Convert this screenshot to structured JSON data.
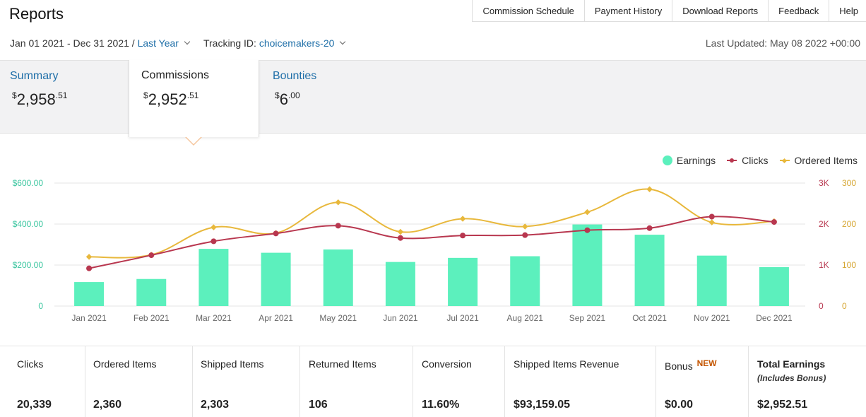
{
  "page": {
    "title": "Reports"
  },
  "top_tabs": [
    "Commission Schedule",
    "Payment History",
    "Download Reports",
    "Feedback",
    "Help"
  ],
  "filters": {
    "date_range": "Jan 01 2021 - Dec 31 2021",
    "separator": "/",
    "period": "Last Year",
    "tracking_label": "Tracking ID:",
    "tracking_id": "choicemakers-20"
  },
  "last_updated": "Last Updated: May 08 2022 +00:00",
  "summary": {
    "summary": {
      "label": "Summary",
      "currency": "$",
      "whole": "2,958",
      "cents": ".51"
    },
    "commissions": {
      "label": "Commissions",
      "currency": "$",
      "whole": "2,952",
      "cents": ".51"
    },
    "bounties": {
      "label": "Bounties",
      "currency": "$",
      "whole": "6",
      "cents": ".00"
    }
  },
  "legend": {
    "earnings": "Earnings",
    "clicks": "Clicks",
    "ordered": "Ordered Items"
  },
  "colors": {
    "earnings": "#5cf0bd",
    "clicks": "#b8374f",
    "ordered": "#e8b83c",
    "link": "#1f6fa8",
    "new_badge": "#c45500"
  },
  "chart_data": {
    "type": "bar",
    "categories": [
      "Jan 2021",
      "Feb 2021",
      "Mar 2021",
      "Apr 2021",
      "May 2021",
      "Jun 2021",
      "Jul 2021",
      "Aug 2021",
      "Sep 2021",
      "Oct 2021",
      "Nov 2021",
      "Dec 2021"
    ],
    "series": [
      {
        "name": "Earnings",
        "type": "bar",
        "axis": "left",
        "values": [
          117,
          132,
          279,
          260,
          276,
          215,
          235,
          243,
          398,
          348,
          246,
          190
        ]
      },
      {
        "name": "Clicks",
        "type": "line",
        "axis": "right-1",
        "values": [
          920,
          1240,
          1580,
          1770,
          1960,
          1660,
          1720,
          1730,
          1850,
          1900,
          2180,
          2050
        ]
      },
      {
        "name": "Ordered Items",
        "type": "line",
        "axis": "right-2",
        "values": [
          120,
          125,
          192,
          178,
          253,
          181,
          213,
          194,
          229,
          285,
          204,
          207
        ]
      }
    ],
    "left_axis": {
      "ticks": [
        "0",
        "$200.00",
        "$400.00",
        "$600.00"
      ],
      "ylim": [
        0,
        600
      ]
    },
    "right_axis_1": {
      "ticks": [
        "0",
        "1K",
        "2K",
        "3K"
      ],
      "ylim": [
        0,
        3000
      ]
    },
    "right_axis_2": {
      "ticks": [
        "0",
        "100",
        "200",
        "300"
      ],
      "ylim": [
        0,
        300
      ]
    },
    "grid": true,
    "legend_position": "top-right"
  },
  "stats": [
    {
      "label": "Clicks",
      "value": "20,339"
    },
    {
      "label": "Ordered Items",
      "value": "2,360"
    },
    {
      "label": "Shipped Items",
      "value": "2,303"
    },
    {
      "label": "Returned Items",
      "value": "106"
    },
    {
      "label": "Conversion",
      "value": "11.60%"
    },
    {
      "label": "Shipped Items Revenue",
      "value": "$93,159.05"
    },
    {
      "label": "Bonus",
      "badge": "NEW",
      "value": "$0.00"
    },
    {
      "label": "Total Earnings",
      "note": "(Includes Bonus)",
      "value": "$2,952.51"
    }
  ]
}
